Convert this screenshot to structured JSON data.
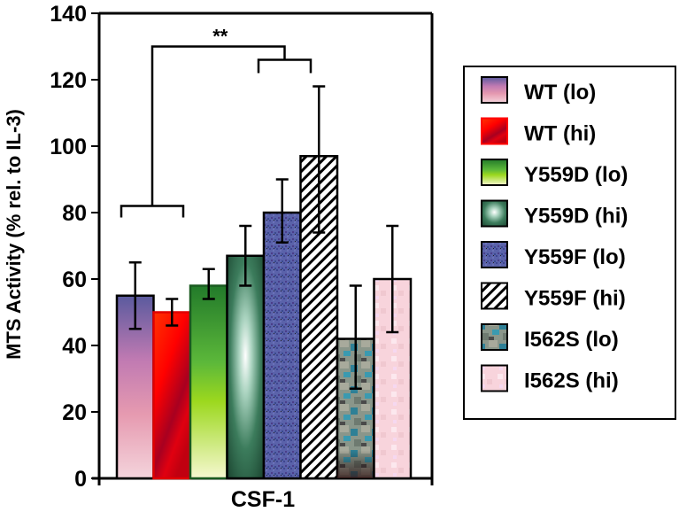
{
  "chart_data": {
    "type": "bar",
    "title": "",
    "xlabel": "CSF-1",
    "ylabel": "MTS Activity (% rel. to IL-3)",
    "ylim": [
      0,
      140
    ],
    "yticks": [
      0,
      20,
      40,
      60,
      80,
      100,
      120,
      140
    ],
    "categories": [
      "CSF-1"
    ],
    "grid": false,
    "legend_position": "right",
    "series": [
      {
        "name": "WT (lo)",
        "values": [
          55
        ],
        "error_high": [
          65
        ],
        "error_low": [
          45
        ],
        "fill": "gradient-purple-pink",
        "colors": [
          "#5a5a9e",
          "#c87ab4",
          "#f4d4dc"
        ]
      },
      {
        "name": "WT (hi)",
        "values": [
          50
        ],
        "error_high": [
          54
        ],
        "error_low": [
          46
        ],
        "fill": "gradient-red",
        "colors": [
          "#ff2a00",
          "#ff0000",
          "#a00018"
        ]
      },
      {
        "name": "Y559D (lo)",
        "values": [
          58
        ],
        "error_high": [
          63
        ],
        "error_low": [
          54
        ],
        "fill": "gradient-green-yellow",
        "colors": [
          "#238a2e",
          "#8fd41e",
          "#f4f8c8"
        ]
      },
      {
        "name": "Y559D (hi)",
        "values": [
          67
        ],
        "error_high": [
          76
        ],
        "error_low": [
          58
        ],
        "fill": "radial-burst-green",
        "colors": [
          "#1e4d34",
          "#3e7d5e",
          "#e6f2ea"
        ]
      },
      {
        "name": "Y559F (lo)",
        "values": [
          80
        ],
        "error_high": [
          90
        ],
        "error_low": [
          71
        ],
        "fill": "noise-blue",
        "colors": [
          "#5860a8",
          "#4a4e96"
        ]
      },
      {
        "name": "Y559F (hi)",
        "values": [
          97
        ],
        "error_high": [
          118
        ],
        "error_low": [
          74
        ],
        "fill": "diagonal-hatch",
        "colors": [
          "#000000",
          "#ffffff"
        ]
      },
      {
        "name": "I562S (lo)",
        "values": [
          42
        ],
        "error_high": [
          58
        ],
        "error_low": [
          27
        ],
        "fill": "texture-stone",
        "colors": [
          "#8a9688",
          "#2e7f96",
          "#3a2a2a"
        ]
      },
      {
        "name": "I562S (hi)",
        "values": [
          60
        ],
        "error_high": [
          76
        ],
        "error_low": [
          44
        ],
        "fill": "texture-pink",
        "colors": [
          "#f8d4dc",
          "#f4cce8",
          "#ffffff"
        ]
      }
    ],
    "annotations": [
      {
        "text": "**",
        "type": "significance-bracket",
        "between": [
          "WT (lo) / WT (hi)",
          "Y559F (lo) / Y559F (hi)"
        ]
      }
    ]
  }
}
